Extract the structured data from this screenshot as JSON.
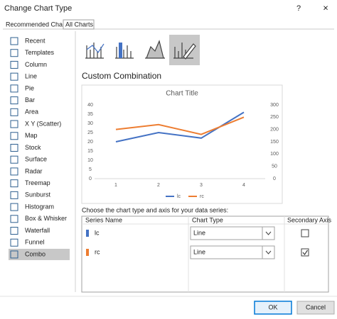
{
  "dialog": {
    "title": "Change Chart Type",
    "help": "?",
    "close": "×"
  },
  "tabs": [
    "Recommended Charts",
    "All Charts"
  ],
  "chart_types": [
    {
      "label": "Recent"
    },
    {
      "label": "Templates"
    },
    {
      "label": "Column"
    },
    {
      "label": "Line"
    },
    {
      "label": "Pie"
    },
    {
      "label": "Bar"
    },
    {
      "label": "Area"
    },
    {
      "label": "X Y (Scatter)"
    },
    {
      "label": "Map"
    },
    {
      "label": "Stock"
    },
    {
      "label": "Surface"
    },
    {
      "label": "Radar"
    },
    {
      "label": "Treemap"
    },
    {
      "label": "Sunburst"
    },
    {
      "label": "Histogram"
    },
    {
      "label": "Box & Whisker"
    },
    {
      "label": "Waterfall"
    },
    {
      "label": "Funnel"
    },
    {
      "label": "Combo",
      "selected": true
    }
  ],
  "section_title": "Custom Combination",
  "preview_chart": {
    "type": "line",
    "title": "Chart Title",
    "categories": [
      "1",
      "2",
      "3",
      "4"
    ],
    "series": [
      {
        "name": "lc",
        "color": "#4472c4",
        "values": [
          20,
          25,
          22,
          36
        ]
      },
      {
        "name": "rc",
        "color": "#ed7d31",
        "values": [
          200,
          220,
          180,
          250
        ],
        "axis": "y2"
      }
    ],
    "ylim": [
      0,
      40
    ],
    "yticks": [
      0,
      5,
      10,
      15,
      20,
      25,
      30,
      35,
      40
    ],
    "y2lim": [
      0,
      300
    ],
    "y2ticks": [
      0,
      50,
      100,
      150,
      200,
      250,
      300
    ]
  },
  "series_prompt": "Choose the chart type and axis for your data series:",
  "series_table": {
    "headers": [
      "Series Name",
      "Chart Type",
      "Secondary Axis"
    ],
    "rows": [
      {
        "name": "lc",
        "color": "#4472c4",
        "chart_type": "Line",
        "secondary_axis": false
      },
      {
        "name": "rc",
        "color": "#ed7d31",
        "chart_type": "Line",
        "secondary_axis": true
      }
    ]
  },
  "buttons": [
    "OK",
    "Cancel"
  ]
}
